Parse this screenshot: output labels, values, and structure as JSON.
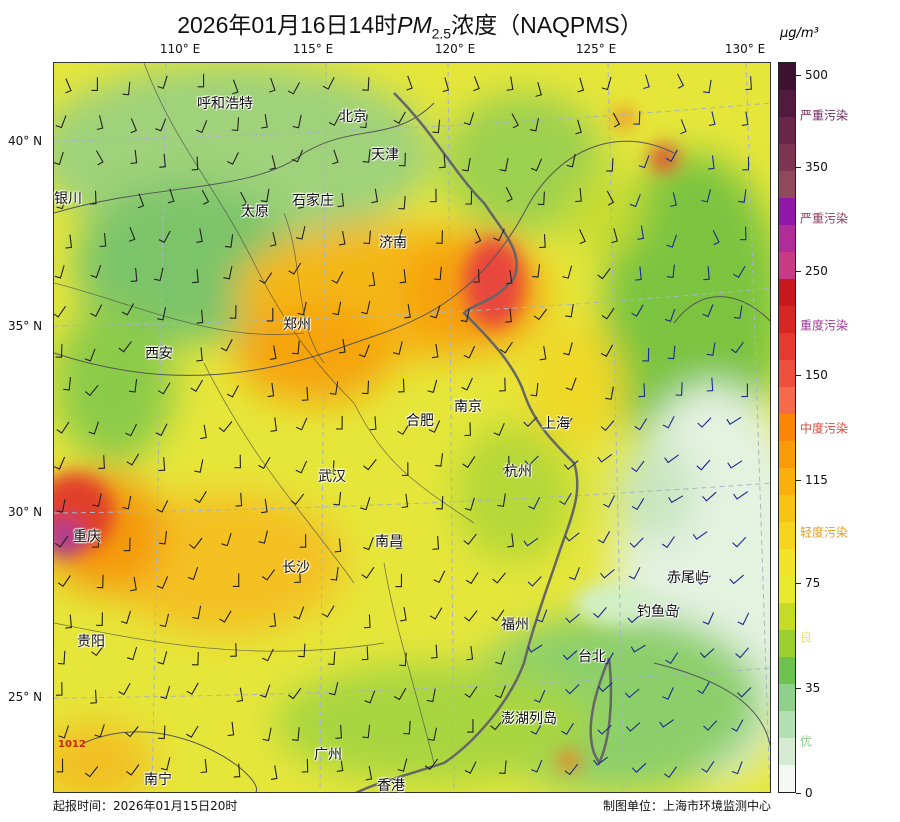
{
  "title": {
    "prefix": "2026年01月16日14时",
    "pm": "PM",
    "sub": "2.5",
    "suffix": "浓度（NAQPMS）"
  },
  "lon_labels": [
    "110° E",
    "115° E",
    "120° E",
    "125° E",
    "130° E"
  ],
  "lat_labels": [
    "40° N",
    "35° N",
    "30° N",
    "25° N"
  ],
  "cities": [
    "呼和浩特",
    "北京",
    "天津",
    "银川",
    "太原",
    "石家庄",
    "济南",
    "郑州",
    "西安",
    "南京",
    "合肥",
    "上海",
    "武汉",
    "杭州",
    "重庆",
    "南昌",
    "长沙",
    "赤尾屿",
    "钓鱼岛",
    "贵阳",
    "福州",
    "台北",
    "澎湖列岛",
    "广州",
    "南宁",
    "香港"
  ],
  "isobar_labels": [
    "1012"
  ],
  "colorbar": {
    "unit": "μg/m³",
    "ticks": [
      "0",
      "35",
      "75",
      "115",
      "150",
      "250",
      "350",
      "500"
    ],
    "categories": [
      {
        "label": "严重污染",
        "color": "#6b2a5a"
      },
      {
        "label": "严重污染",
        "color": "#8a3a5e"
      },
      {
        "label": "重度污染",
        "color": "#a0359a"
      },
      {
        "label": "中度污染",
        "color": "#d9483a"
      },
      {
        "label": "轻度污染",
        "color": "#e0a020"
      },
      {
        "label": "良",
        "color": "#e8e070"
      },
      {
        "label": "优",
        "color": "#8ccc8c"
      }
    ],
    "level_colors": [
      "#f4f8f2",
      "#d6ecd2",
      "#b4dfb0",
      "#8fd08a",
      "#6cc44e",
      "#9cd030",
      "#c4dc28",
      "#e8ea30",
      "#f2e42a",
      "#f6d41e",
      "#f8c414",
      "#f9b00c",
      "#f99a08",
      "#fb8606",
      "#f66a4c",
      "#ee4e3c",
      "#e43a30",
      "#d82624",
      "#c81a1e",
      "#c83a84",
      "#b02c98",
      "#9018a8",
      "#90485c",
      "#7e3552",
      "#6a2648",
      "#521a3e",
      "#3c1230"
    ]
  },
  "footer": {
    "issue_time": "起报时间：2026年01月15日20时",
    "producer": "制图单位：上海市环境监测中心"
  }
}
